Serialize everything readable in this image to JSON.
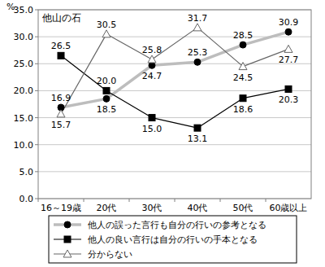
{
  "chart_data": {
    "type": "line",
    "title": "他山の石",
    "y_label": "%",
    "categories": [
      "16～19歳",
      "20代",
      "30代",
      "40代",
      "50代",
      "60歳以上"
    ],
    "ylim": [
      0,
      35
    ],
    "yticks": [
      {
        "value": 0,
        "label": "0.0"
      },
      {
        "value": 5,
        "label": "5.0"
      },
      {
        "value": 10,
        "label": "10.0"
      },
      {
        "value": 15,
        "label": "15.0"
      },
      {
        "value": 20,
        "label": "20.0"
      },
      {
        "value": 25,
        "label": "25.0"
      },
      {
        "value": 30,
        "label": "30.0"
      },
      {
        "value": 35,
        "label": "35.0"
      }
    ],
    "grid": true,
    "legend": "bottom",
    "data_labels": true,
    "series": [
      {
        "name": "他人の誤った言行も自分の行いの参考となる",
        "color": "#bdbdbd",
        "marker": "circle",
        "line_style": "thick",
        "values": [
          16.9,
          18.5,
          24.7,
          25.3,
          28.5,
          30.9
        ],
        "value_labels": [
          "16.9",
          "18.5",
          "24.7",
          "25.3",
          "28.5",
          "30.9"
        ]
      },
      {
        "name": "他人の良い言行は自分の行いの手本となる",
        "color": "#000000",
        "marker": "square",
        "line_style": "solid",
        "values": [
          26.5,
          20.0,
          15.0,
          13.1,
          18.6,
          20.3
        ],
        "value_labels": [
          "26.5",
          "20.0",
          "15.0",
          "13.1",
          "18.6",
          "20.3"
        ]
      },
      {
        "name": "分からない",
        "color": "#666666",
        "marker": "triangle",
        "line_style": "solid",
        "values": [
          15.7,
          30.5,
          25.8,
          31.7,
          24.5,
          27.7
        ],
        "value_labels": [
          "15.7",
          "30.5",
          "25.8",
          "31.7",
          "24.5",
          "27.7"
        ]
      }
    ]
  }
}
